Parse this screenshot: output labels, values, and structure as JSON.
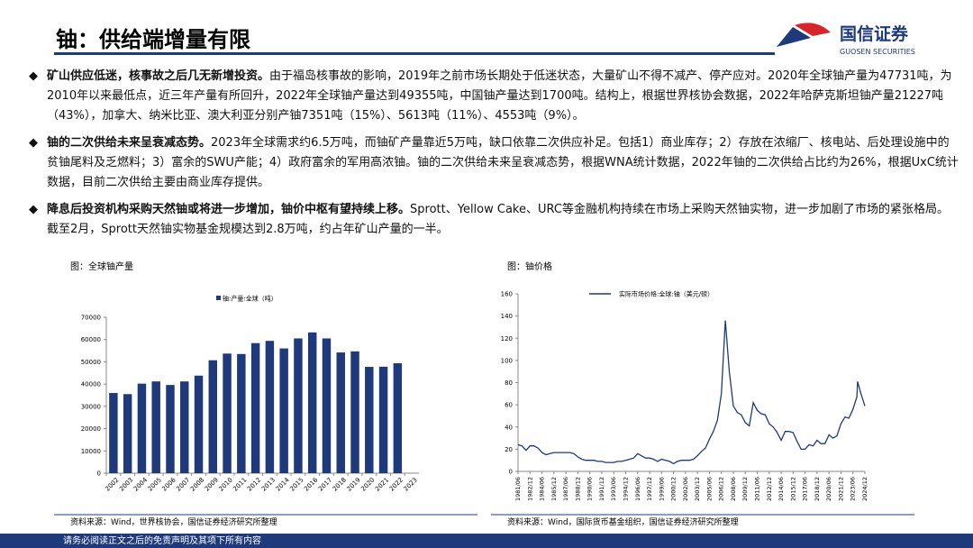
{
  "header": {
    "title": "铀：供给端增量有限"
  },
  "logo": {
    "name": "国信证券",
    "english": "GUOSEN SECURITIES"
  },
  "bullets": [
    {
      "lead": "矿山供应低迷，核事故之后几无新增投资。",
      "text": "由于福岛核事故的影响，2019年之前市场长期处于低迷状态，大量矿山不得不减产、停产应对。2020年全球铀产量为47731吨，为2010年以来最低点，近三年产量有所回升，2022年全球铀产量达到49355吨，中国铀产量达到1700吨。结构上，根据世界核协会数据，2022年哈萨克斯坦铀产量21227吨（43%），加拿大、纳米比亚、澳大利亚分别产铀7351吨（15%）、5613吨（11%）、4553吨（9%）。"
    },
    {
      "lead": "铀的二次供给未来呈衰减态势。",
      "text": "2023年全球需求约6.5万吨，而铀矿产量靠近5万吨，缺口依靠二次供应补足。包括1）商业库存；2）存放在浓缩厂、核电站、后处理设施中的贫铀尾料及乏燃料；3）富余的SWU产能；4）政府富余的军用高浓铀。铀的二次供给未来呈衰减态势，根据WNA统计数据，2022年铀的二次供给占比约为26%，根据UxC统计数据，目前二次供给主要由商业库存提供。"
    },
    {
      "lead": "降息后投资机构采购天然铀或将进一步增加，铀价中枢有望持续上移。",
      "text": "Sprott、Yellow Cake、URC等金融机构持续在市场上采购天然铀实物，进一步加剧了市场的紧张格局。截至2月，Sprott天然铀实物基金规模达到2.8万吨，约占年矿山产量的一半。"
    }
  ],
  "chart_data": [
    {
      "type": "bar",
      "title": "图：全球铀产量",
      "source": "资料来源：Wind，世界核协会，国信证券经济研究所整理",
      "categories": [
        "2002",
        "2003",
        "2004",
        "2005",
        "2006",
        "2007",
        "2008",
        "2009",
        "2010",
        "2011",
        "2012",
        "2013",
        "2014",
        "2015",
        "2016",
        "2017",
        "2018",
        "2019",
        "2020",
        "2021",
        "2022",
        "2023"
      ],
      "series": [
        {
          "name": "铀:产量:全球（吨）",
          "color": "#1f3a7a",
          "values": [
            36000,
            35500,
            40200,
            41200,
            39600,
            41200,
            43800,
            50700,
            53700,
            53500,
            58400,
            59400,
            56000,
            60500,
            63200,
            60500,
            54200,
            54700,
            47731,
            47800,
            49355,
            null
          ]
        }
      ],
      "ylim": [
        0,
        70000
      ],
      "yticks": [
        0,
        10000,
        20000,
        30000,
        40000,
        50000,
        60000,
        70000
      ]
    },
    {
      "type": "line",
      "title": "图：铀价格",
      "source": "资料来源：Wind，国际货币基金组织，国信证券经济研究所整理",
      "x": [
        "1981/06",
        "1981/12",
        "1982/06",
        "1982/12",
        "1983/06",
        "1983/12",
        "1984/06",
        "1984/12",
        "1985/06",
        "1985/12",
        "1986/06",
        "1986/12",
        "1987/06",
        "1987/12",
        "1988/06",
        "1988/12",
        "1989/06",
        "1989/12",
        "1990/06",
        "1990/12",
        "1991/06",
        "1991/12",
        "1992/06",
        "1992/12",
        "1993/06",
        "1993/12",
        "1994/06",
        "1994/12",
        "1995/06",
        "1995/12",
        "1996/06",
        "1996/12",
        "1997/06",
        "1997/12",
        "1998/06",
        "1998/12",
        "1999/06",
        "1999/12",
        "2000/06",
        "2000/12",
        "2001/06",
        "2001/12",
        "2002/06",
        "2002/12",
        "2003/06",
        "2003/12",
        "2004/06",
        "2004/12",
        "2005/06",
        "2005/12",
        "2006/06",
        "2006/12",
        "2007/06",
        "2007/12",
        "2008/06",
        "2008/12",
        "2009/06",
        "2009/12",
        "2010/06",
        "2010/12",
        "2011/06",
        "2011/12",
        "2012/06",
        "2012/12",
        "2013/06",
        "2013/12",
        "2014/06",
        "2014/12",
        "2015/06",
        "2015/12",
        "2016/06",
        "2016/12",
        "2017/06",
        "2017/12",
        "2018/06",
        "2018/12",
        "2019/06",
        "2019/12",
        "2020/06",
        "2020/12",
        "2021/06",
        "2021/12",
        "2022/06",
        "2022/12",
        "2023/06",
        "2023/12",
        "2024/01",
        "2024/06",
        "2024/12"
      ],
      "series": [
        {
          "name": "实际市场价格:全球:铀（美元/磅）",
          "color": "#1f3a7a",
          "values": [
            24,
            23,
            19,
            23,
            23,
            21,
            17,
            15,
            16,
            17,
            17,
            17,
            17,
            17,
            16,
            13,
            11,
            10,
            10,
            10,
            9,
            9,
            8,
            8,
            8,
            9,
            9,
            10,
            11,
            12,
            16,
            14,
            12,
            12,
            11,
            9,
            11,
            10,
            9,
            7,
            9,
            10,
            10,
            10,
            11,
            14,
            18,
            21,
            29,
            36,
            46,
            70,
            136,
            90,
            59,
            53,
            51,
            44,
            41,
            62,
            55,
            52,
            51,
            43,
            40,
            35,
            28,
            36,
            36,
            35,
            27,
            20,
            20,
            24,
            23,
            28,
            25,
            25,
            33,
            30,
            32,
            43,
            49,
            48,
            56,
            67,
            81,
            70,
            59
          ]
        }
      ],
      "xlim": [
        "1981/06",
        "2024/12"
      ],
      "xticks": [
        "1981/06",
        "1982/12",
        "1984/06",
        "1985/12",
        "1987/06",
        "1988/12",
        "1990/06",
        "1991/12",
        "1993/06",
        "1994/12",
        "1996/06",
        "1997/12",
        "1999/06",
        "2000/12",
        "2002/06",
        "2003/12",
        "2005/06",
        "2006/12",
        "2008/06",
        "2009/12",
        "2011/06",
        "2012/12",
        "2014/06",
        "2015/12",
        "2017/06",
        "2018/12",
        "2020/06",
        "2021/12",
        "2023/06",
        "2024/12"
      ],
      "ylim": [
        0,
        160
      ],
      "yticks": [
        0,
        20,
        40,
        60,
        80,
        100,
        120,
        140,
        160
      ]
    }
  ],
  "footer": {
    "disclaimer": "请务必阅读正文之后的免责声明及其项下所有内容"
  }
}
